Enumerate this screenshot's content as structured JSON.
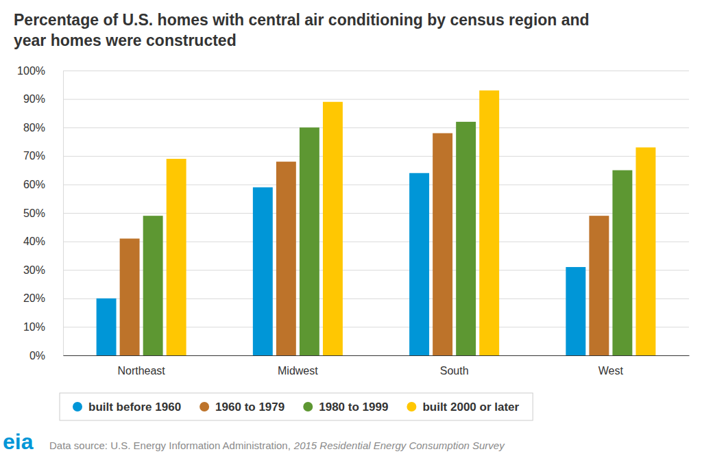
{
  "chart_data": {
    "type": "bar",
    "title": "Percentage of U.S. homes with central air conditioning by census region and year homes were constructed",
    "categories": [
      "Northeast",
      "Midwest",
      "South",
      "West"
    ],
    "series": [
      {
        "name": "built before 1960",
        "color": "#0096d7",
        "values": [
          20,
          59,
          64,
          31
        ]
      },
      {
        "name": "1960 to 1979",
        "color": "#bd732a",
        "values": [
          41,
          68,
          78,
          49
        ]
      },
      {
        "name": "1980 to 1999",
        "color": "#5d9732",
        "values": [
          49,
          80,
          82,
          65
        ]
      },
      {
        "name": "built 2000 or later",
        "color": "#ffc702",
        "values": [
          69,
          89,
          93,
          73
        ]
      }
    ],
    "ylim": [
      0,
      100
    ],
    "yticks": [
      {
        "value": 0,
        "label": "0%"
      },
      {
        "value": 10,
        "label": "10%"
      },
      {
        "value": 20,
        "label": "20%"
      },
      {
        "value": 30,
        "label": "30%"
      },
      {
        "value": 40,
        "label": "40%"
      },
      {
        "value": 50,
        "label": "50%"
      },
      {
        "value": 60,
        "label": "60%"
      },
      {
        "value": 70,
        "label": "70%"
      },
      {
        "value": 80,
        "label": "80%"
      },
      {
        "value": 90,
        "label": "90%"
      },
      {
        "value": 100,
        "label": "100%"
      }
    ],
    "grid": true,
    "legend": "bottom",
    "logo": "eia",
    "source": [
      "Data source: U.S. Energy Information Administration,",
      "2015 Residential Energy Consumption Survey"
    ]
  }
}
